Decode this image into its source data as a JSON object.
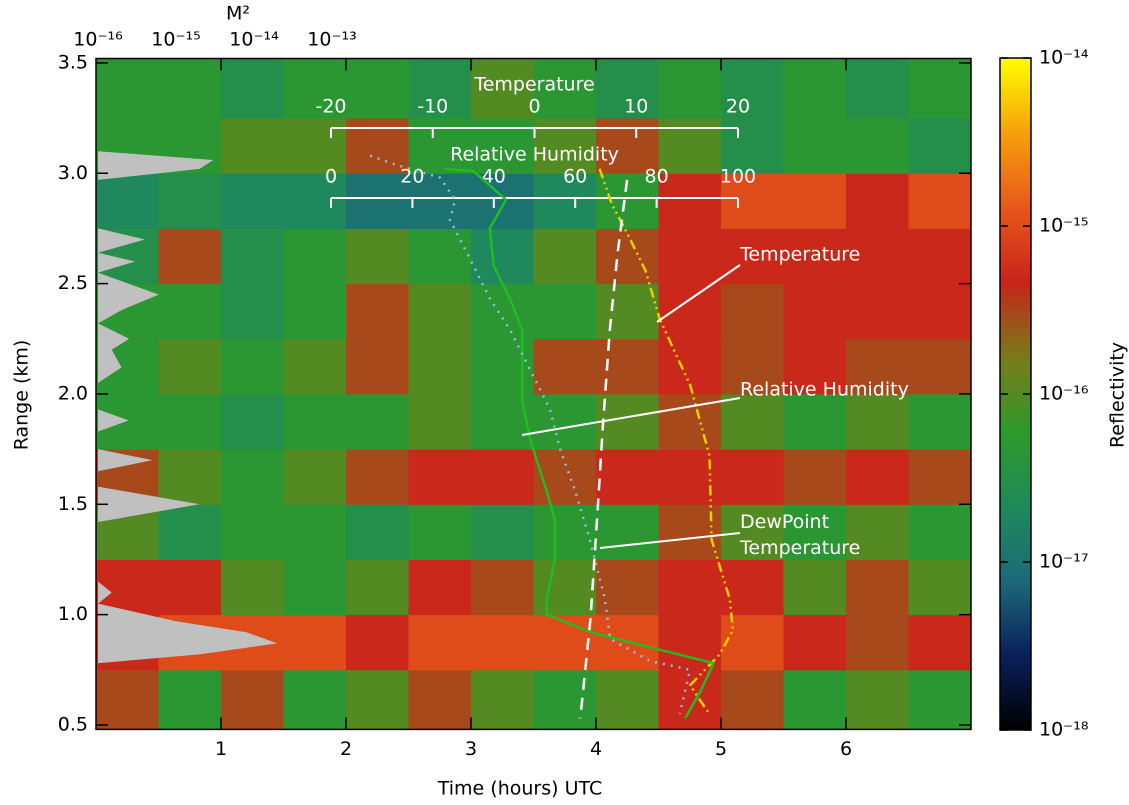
{
  "chart_data": {
    "type": "heatmap",
    "xlabel": "Time (hours) UTC",
    "ylabel": "Range (km)",
    "xlim": [
      0,
      7
    ],
    "xticks": [
      1,
      2,
      3,
      4,
      5,
      6
    ],
    "ylim": [
      0.48,
      3.52
    ],
    "yticks": [
      0.5,
      {
        "value": 1,
        "label": "1.0"
      },
      1.5,
      {
        "value": 2,
        "label": "2.0"
      },
      2.5,
      {
        "value": 3,
        "label": "3.0"
      },
      3.5
    ],
    "heatmap": {
      "x_edges": [
        0,
        0.5,
        1,
        1.5,
        2,
        2.5,
        3,
        3.5,
        4,
        4.5,
        5,
        5.5,
        6,
        6.5,
        7
      ],
      "y_edges": [
        0.48,
        0.75,
        1,
        1.25,
        1.5,
        1.75,
        2,
        2.25,
        2.5,
        2.75,
        3,
        3.25,
        3.52
      ],
      "values": [
        [
          3e-16,
          5e-17,
          3e-16,
          5e-17,
          1e-16,
          3e-16,
          1e-16,
          5e-17,
          1e-16,
          5e-16,
          3e-16,
          5e-17,
          1e-16,
          5e-17
        ],
        [
          5e-16,
          1e-15,
          1e-15,
          1e-15,
          5e-16,
          1e-15,
          1e-15,
          1e-15,
          1e-15,
          5e-16,
          1e-15,
          5e-16,
          3e-16,
          5e-16
        ],
        [
          5e-16,
          5e-16,
          1e-16,
          5e-17,
          1e-16,
          5e-16,
          3e-16,
          1e-16,
          3e-16,
          5e-16,
          5e-16,
          1e-16,
          3e-16,
          1e-16
        ],
        [
          1e-16,
          3e-17,
          5e-17,
          5e-17,
          3e-17,
          5e-17,
          3e-17,
          5e-17,
          5e-17,
          3e-16,
          1e-16,
          5e-17,
          1e-16,
          5e-17
        ],
        [
          3e-16,
          1e-16,
          5e-17,
          1e-16,
          3e-16,
          5e-16,
          5e-16,
          3e-16,
          5e-16,
          5e-16,
          5e-16,
          3e-16,
          5e-16,
          3e-16
        ],
        [
          5e-17,
          5e-17,
          3e-17,
          5e-17,
          5e-17,
          1e-16,
          5e-17,
          5e-17,
          1e-16,
          3e-16,
          1e-16,
          5e-17,
          1e-16,
          5e-17
        ],
        [
          5e-17,
          1e-16,
          5e-17,
          1e-16,
          3e-16,
          1e-16,
          5e-17,
          3e-16,
          3e-16,
          5e-16,
          3e-16,
          5e-16,
          3e-16,
          3e-16
        ],
        [
          5e-17,
          5e-17,
          3e-17,
          5e-17,
          3e-16,
          1e-16,
          5e-17,
          5e-17,
          1e-16,
          5e-16,
          3e-16,
          5e-16,
          5e-16,
          5e-16
        ],
        [
          3e-17,
          3e-16,
          3e-17,
          5e-17,
          1e-16,
          5e-17,
          2e-17,
          1e-16,
          3e-16,
          5e-16,
          5e-16,
          5e-16,
          5e-16,
          5e-16
        ],
        [
          2e-17,
          3e-17,
          2e-17,
          2e-17,
          1e-17,
          1e-17,
          1e-17,
          2e-17,
          5e-17,
          5e-16,
          1e-15,
          1e-15,
          5e-16,
          1e-15
        ],
        [
          5e-17,
          5e-17,
          1e-16,
          1e-16,
          3e-16,
          5e-17,
          5e-17,
          1e-16,
          3e-16,
          1e-16,
          3e-17,
          5e-17,
          5e-17,
          3e-17
        ],
        [
          5e-17,
          5e-17,
          3e-17,
          5e-17,
          5e-17,
          3e-17,
          1e-16,
          5e-17,
          3e-17,
          5e-17,
          3e-17,
          5e-17,
          3e-17,
          5e-17
        ]
      ]
    },
    "colorbar": {
      "label": "Reflectivity",
      "log": true,
      "lim": [
        1e-18,
        1e-14
      ],
      "ticks": [
        {
          "value": 1e-18,
          "label": "10⁻¹⁸"
        },
        {
          "value": 1e-17,
          "label": "10⁻¹⁷"
        },
        {
          "value": 1e-16,
          "label": "10⁻¹⁶"
        },
        {
          "value": 1e-15,
          "label": "10⁻¹⁵"
        },
        {
          "value": 1e-14,
          "label": "10⁻¹⁴"
        }
      ],
      "colormap": [
        "#000000",
        "#0b1f5c",
        "#1b6a78",
        "#1f8a5a",
        "#2e9a2a",
        "#7a7a1a",
        "#c8241a",
        "#e8581a",
        "#f5a00a",
        "#ffff00"
      ]
    },
    "m2_profile": {
      "title": "M²",
      "log": true,
      "xlim": [
        1e-16,
        1e-13
      ],
      "xticks": [
        {
          "value": 1e-16,
          "label": "10⁻¹⁶"
        },
        {
          "value": 1e-15,
          "label": "10⁻¹⁵"
        },
        {
          "value": 1e-14,
          "label": "10⁻¹⁴"
        },
        {
          "value": 1e-13,
          "label": "10⁻¹³"
        }
      ],
      "color": "#c0c0c0",
      "range": [
        0.48,
        0.78,
        0.82,
        0.87,
        0.92,
        0.97,
        1.05,
        1.1,
        1.15,
        1.42,
        1.5,
        1.58,
        1.65,
        1.7,
        1.75,
        1.83,
        1.88,
        1.93,
        2.05,
        2.12,
        2.2,
        2.25,
        2.32,
        2.38,
        2.45,
        2.55,
        2.6,
        2.64,
        2.7,
        2.75,
        2.97,
        3.02,
        3.06,
        3.1,
        3.52
      ],
      "values": [
        1e-16,
        1e-16,
        2e-15,
        2e-14,
        8e-15,
        1e-15,
        1e-16,
        1.5e-16,
        1e-16,
        1e-16,
        2e-15,
        1e-16,
        1e-16,
        5e-16,
        1e-16,
        1e-16,
        2.5e-16,
        1e-16,
        1e-16,
        2e-16,
        1.5e-16,
        2.5e-16,
        1e-16,
        2e-16,
        6e-16,
        1e-16,
        3e-16,
        1e-16,
        4e-16,
        1e-16,
        1e-16,
        2e-15,
        3e-15,
        1e-16,
        1e-16
      ]
    },
    "temperature_axis": {
      "title": "Temperature",
      "xlim": [
        -20,
        20
      ],
      "xticks": [
        -20,
        -10,
        0,
        10,
        20
      ]
    },
    "rh_axis": {
      "title": "Relative Humidity",
      "xlim": [
        0,
        100
      ],
      "xticks": [
        0,
        20,
        40,
        60,
        80,
        100
      ]
    },
    "series": [
      {
        "name": "Temperature",
        "axis": "temperature",
        "color": "#e8d000",
        "style": "dashdot",
        "range": [
          3.02,
          2.86,
          2.72,
          2.56,
          2.34,
          2.04,
          1.72,
          1.34,
          1.07,
          0.93,
          0.82,
          0.68,
          0.61,
          0.55
        ],
        "values": [
          6.4,
          7.6,
          9.2,
          10.9,
          12.3,
          15.3,
          17.2,
          17.4,
          19.2,
          19.5,
          18.2,
          15.3,
          16.3,
          17.2
        ]
      },
      {
        "name": "Relative Humidity",
        "axis": "rh",
        "color": "#22bb22",
        "style": "solid",
        "range": [
          3.02,
          3.01,
          2.88,
          2.75,
          2.58,
          2.43,
          2.29,
          1.97,
          1.79,
          1.56,
          1.43,
          1.25,
          1.07,
          1.0,
          0.92,
          0.84,
          0.78,
          0.66,
          0.53
        ],
        "values": [
          28,
          35,
          43,
          39,
          40,
          44,
          47,
          47,
          49,
          53,
          55,
          55,
          53,
          53,
          64,
          81,
          94,
          91,
          87
        ]
      },
      {
        "name": "DewPoint Temperature",
        "axis": "temperature",
        "color": "#ffffff",
        "style": "dash",
        "range": [
          2.97,
          2.65,
          2.29,
          1.84,
          1.47,
          0.98,
          0.53
        ],
        "values": [
          9.1,
          8.2,
          7.4,
          6.7,
          6.2,
          5.5,
          4.5
        ]
      },
      {
        "axis": "rh",
        "color": "#99bbdd",
        "style": "dot",
        "range": [
          3.08,
          3.04,
          2.98,
          2.88,
          2.79,
          2.61,
          2.43,
          2.29,
          2.11,
          1.93,
          1.75,
          1.56,
          1.34,
          1.07,
          0.89,
          0.79,
          0.75,
          0.55
        ],
        "values": [
          9.6,
          15.7,
          26.8,
          30.5,
          29.2,
          34.2,
          39.1,
          44,
          48.9,
          53.8,
          56.3,
          60,
          63.6,
          67.3,
          68.6,
          78.4,
          88.2,
          85.7
        ]
      }
    ]
  }
}
